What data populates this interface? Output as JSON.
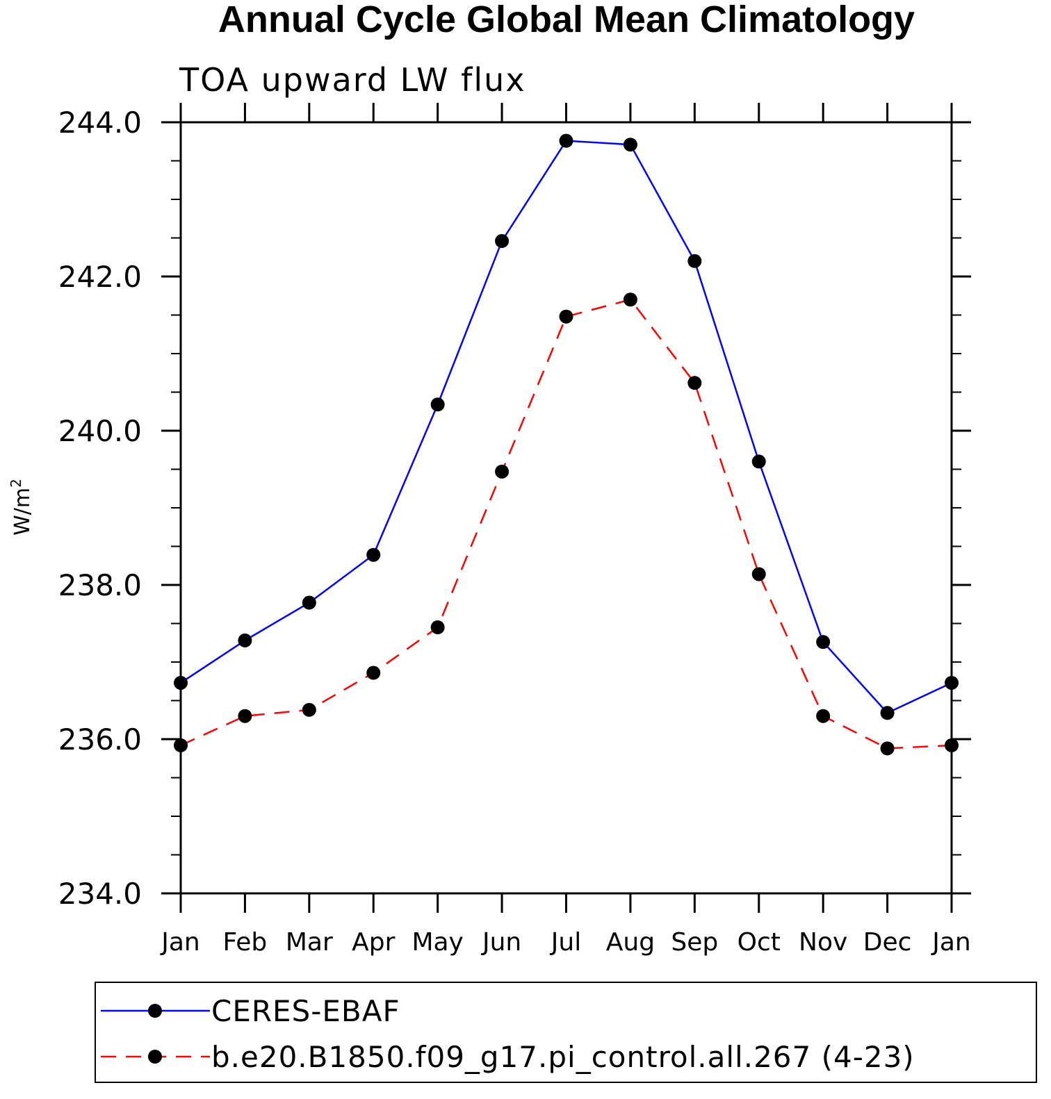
{
  "chart_data": {
    "type": "line",
    "title": "Annual Cycle Global Mean Climatology",
    "subtitle": "TOA upward LW flux",
    "ylabel": "W/m",
    "ylabel_sup": "2",
    "xlabel": "",
    "categories": [
      "Jan",
      "Feb",
      "Mar",
      "Apr",
      "May",
      "Jun",
      "Jul",
      "Aug",
      "Sep",
      "Oct",
      "Nov",
      "Dec",
      "Jan"
    ],
    "ylim": [
      234.0,
      244.0
    ],
    "yticks": [
      234.0,
      236.0,
      238.0,
      240.0,
      242.0,
      244.0
    ],
    "ytick_labels": [
      "234.0",
      "236.0",
      "238.0",
      "240.0",
      "242.0",
      "244.0"
    ],
    "series": [
      {
        "name": "CERES-EBAF",
        "color": "#0000ff",
        "dash": "solid",
        "values": [
          236.73,
          237.28,
          237.77,
          238.39,
          240.34,
          242.46,
          243.76,
          243.71,
          242.2,
          239.6,
          237.26,
          236.34,
          236.73
        ]
      },
      {
        "name": "b.e20.B1850.f09_g17.pi_control.all.267 (4-23)",
        "color": "#ff0000",
        "dash": "dashed",
        "values": [
          235.92,
          236.3,
          236.38,
          236.86,
          237.45,
          239.47,
          241.48,
          241.7,
          240.62,
          238.14,
          236.3,
          235.88,
          235.92
        ]
      }
    ],
    "marker_color": "#000000",
    "legend": "bottom"
  }
}
